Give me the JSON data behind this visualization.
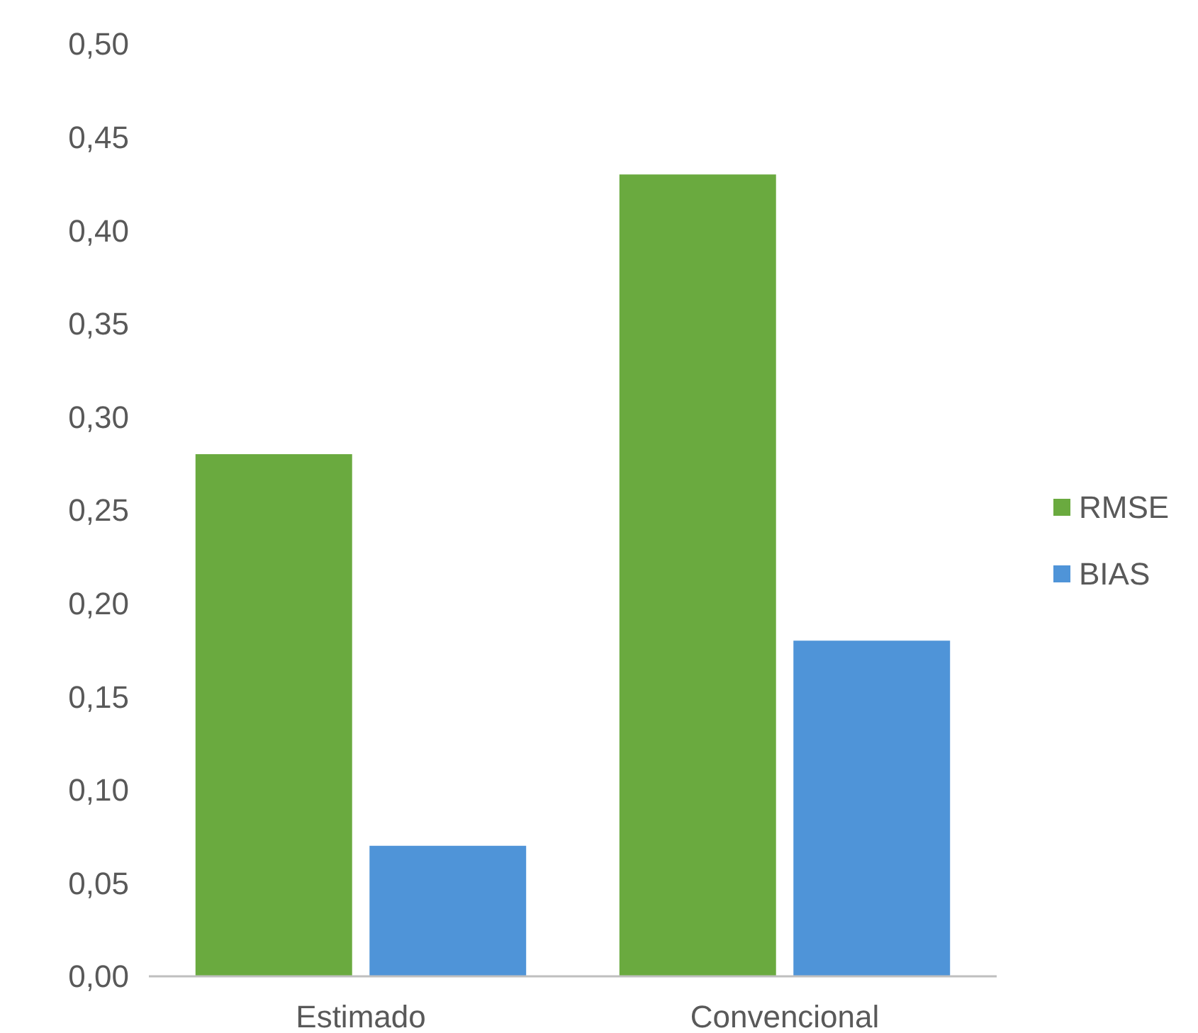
{
  "chart_data": {
    "type": "bar",
    "categories": [
      "Estimado",
      "Convencional"
    ],
    "series": [
      {
        "name": "RMSE",
        "color": "#6aaa3f",
        "values": [
          0.28,
          0.43
        ]
      },
      {
        "name": "BIAS",
        "color": "#4f94d8",
        "values": [
          0.07,
          0.18
        ]
      }
    ],
    "ylim": [
      0,
      0.5
    ],
    "yticks": [
      {
        "value": 0,
        "label": "0,00"
      },
      {
        "value": 0.05,
        "label": "0,05"
      },
      {
        "value": 0.1,
        "label": "0,10"
      },
      {
        "value": 0.15,
        "label": "0,15"
      },
      {
        "value": 0.2,
        "label": "0,20"
      },
      {
        "value": 0.25,
        "label": "0,25"
      },
      {
        "value": 0.3,
        "label": "0,30"
      },
      {
        "value": 0.35,
        "label": "0,35"
      },
      {
        "value": 0.4,
        "label": "0,40"
      },
      {
        "value": 0.45,
        "label": "0,45"
      },
      {
        "value": 0.5,
        "label": "0,50"
      }
    ],
    "grid": false,
    "legend": "right"
  }
}
